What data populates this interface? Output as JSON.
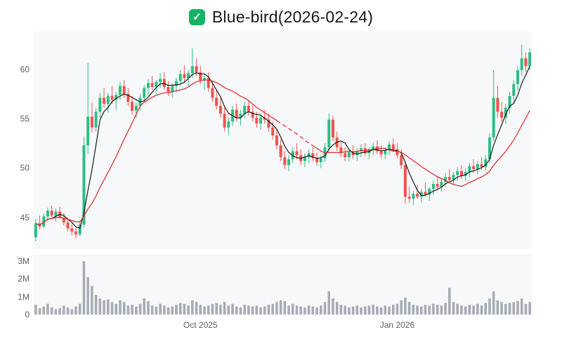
{
  "header": {
    "title": "Blue-bird(2026-02-24)",
    "checkbox_icon": {
      "color": "#16b364",
      "check": "✓"
    }
  },
  "chart_data": {
    "type": "candlestick",
    "title": "Blue-bird(2026-02-24)",
    "colors": {
      "up": "#2ebd85",
      "down": "#ef5350",
      "volume": "#a6abb3",
      "ma_fast": "#1a1a1a",
      "ma_slow": "#e03131",
      "panel_bg": "#f7f8fa"
    },
    "price_axis": {
      "range": [
        41.8,
        63.8
      ],
      "ticks": [
        {
          "value": 60,
          "label": "60"
        },
        {
          "value": 55,
          "label": "55"
        },
        {
          "value": 50,
          "label": "50"
        },
        {
          "value": 45,
          "label": "45"
        }
      ]
    },
    "volume_axis": {
      "max_millions": 3,
      "ticks": [
        {
          "value": 3,
          "label": "3M"
        },
        {
          "value": 2,
          "label": "2M"
        },
        {
          "value": 1,
          "label": "1M"
        },
        {
          "value": 0,
          "label": "0"
        }
      ]
    },
    "x_axis": {
      "tick_labels": [
        {
          "index": 41,
          "label": "Oct 2025"
        },
        {
          "index": 90,
          "label": "Jan 2026"
        }
      ]
    },
    "overlays": [
      {
        "name": "ma-fast",
        "type": "sma",
        "window": 5,
        "color_key": "ma_fast"
      },
      {
        "name": "ma-slow",
        "type": "sma",
        "window": 15,
        "color_key": "ma_slow",
        "dashed_segment": [
          60,
          69
        ]
      }
    ],
    "series": {
      "ohlcv_fields": [
        "open",
        "high",
        "low",
        "close",
        "volume_millions"
      ],
      "candles": [
        [
          43.0,
          44.9,
          42.6,
          44.4,
          0.55
        ],
        [
          44.4,
          45.2,
          43.8,
          44.1,
          0.35
        ],
        [
          44.1,
          45.4,
          43.9,
          45.1,
          0.45
        ],
        [
          45.1,
          46.0,
          44.7,
          45.7,
          0.6
        ],
        [
          45.7,
          46.2,
          45.0,
          45.2,
          0.4
        ],
        [
          45.2,
          45.9,
          44.6,
          45.6,
          0.3
        ],
        [
          45.6,
          46.1,
          44.9,
          45.0,
          0.35
        ],
        [
          45.0,
          45.5,
          44.2,
          44.5,
          0.5
        ],
        [
          44.5,
          45.0,
          43.6,
          43.9,
          0.4
        ],
        [
          43.9,
          44.4,
          43.2,
          43.6,
          0.3
        ],
        [
          43.6,
          44.1,
          42.9,
          43.3,
          0.45
        ],
        [
          43.3,
          44.6,
          43.1,
          44.3,
          0.6
        ],
        [
          44.3,
          53.2,
          44.0,
          52.3,
          3.0
        ],
        [
          52.3,
          60.6,
          51.4,
          55.2,
          2.1
        ],
        [
          55.2,
          56.6,
          53.6,
          54.1,
          1.6
        ],
        [
          54.1,
          56.1,
          53.7,
          55.7,
          1.1
        ],
        [
          55.7,
          57.6,
          55.1,
          57.1,
          0.9
        ],
        [
          57.1,
          58.1,
          56.1,
          56.5,
          0.8
        ],
        [
          56.5,
          57.6,
          55.6,
          57.3,
          0.85
        ],
        [
          57.3,
          58.3,
          56.5,
          56.9,
          0.7
        ],
        [
          56.9,
          57.7,
          55.9,
          57.4,
          0.6
        ],
        [
          57.4,
          58.7,
          56.9,
          58.3,
          0.8
        ],
        [
          58.3,
          58.9,
          57.1,
          57.5,
          0.7
        ],
        [
          57.5,
          58.1,
          56.3,
          56.7,
          0.5
        ],
        [
          56.7,
          57.3,
          55.4,
          55.8,
          0.55
        ],
        [
          55.8,
          56.7,
          55.1,
          56.3,
          0.45
        ],
        [
          56.3,
          57.5,
          55.9,
          57.1,
          0.6
        ],
        [
          57.1,
          58.4,
          56.7,
          58.1,
          0.9
        ],
        [
          58.1,
          59.0,
          57.3,
          58.6,
          0.75
        ],
        [
          58.6,
          59.3,
          57.9,
          58.2,
          0.5
        ],
        [
          58.2,
          58.9,
          57.5,
          58.7,
          0.45
        ],
        [
          58.7,
          59.6,
          58.1,
          59.0,
          0.6
        ],
        [
          59.0,
          59.7,
          57.9,
          58.2,
          0.5
        ],
        [
          58.2,
          58.8,
          57.3,
          57.7,
          0.4
        ],
        [
          57.7,
          58.5,
          57.1,
          58.3,
          0.45
        ],
        [
          58.3,
          59.1,
          57.7,
          58.8,
          0.55
        ],
        [
          58.8,
          59.9,
          58.3,
          59.5,
          0.65
        ],
        [
          59.5,
          60.4,
          58.7,
          59.1,
          0.6
        ],
        [
          59.1,
          59.9,
          58.3,
          59.6,
          0.5
        ],
        [
          59.6,
          62.1,
          59.1,
          60.3,
          0.8
        ],
        [
          60.3,
          61.1,
          59.3,
          59.7,
          0.7
        ],
        [
          59.7,
          60.3,
          58.5,
          58.9,
          0.55
        ],
        [
          58.9,
          59.5,
          57.9,
          59.1,
          0.45
        ],
        [
          59.1,
          59.7,
          57.7,
          58.1,
          0.5
        ],
        [
          58.1,
          58.7,
          56.7,
          57.1,
          0.6
        ],
        [
          57.1,
          57.9,
          55.9,
          56.3,
          0.65
        ],
        [
          56.3,
          57.1,
          55.1,
          55.5,
          0.55
        ],
        [
          55.5,
          56.1,
          53.7,
          54.1,
          0.7
        ],
        [
          54.1,
          55.1,
          53.3,
          54.7,
          0.5
        ],
        [
          54.7,
          56.3,
          54.3,
          55.9,
          0.6
        ],
        [
          55.9,
          56.5,
          54.7,
          55.1,
          0.45
        ],
        [
          55.1,
          55.9,
          54.3,
          55.5,
          0.4
        ],
        [
          55.5,
          56.7,
          55.1,
          56.3,
          0.55
        ],
        [
          56.3,
          56.9,
          55.3,
          55.7,
          0.5
        ],
        [
          55.7,
          56.3,
          54.7,
          55.1,
          0.45
        ],
        [
          55.1,
          55.7,
          54.1,
          54.5,
          0.5
        ],
        [
          54.5,
          55.5,
          53.9,
          55.1,
          0.4
        ],
        [
          55.1,
          55.9,
          54.5,
          54.9,
          0.45
        ],
        [
          54.9,
          55.5,
          53.7,
          54.1,
          0.55
        ],
        [
          54.1,
          54.7,
          52.9,
          53.3,
          0.6
        ],
        [
          53.3,
          53.9,
          51.9,
          52.3,
          0.7
        ],
        [
          52.3,
          52.9,
          50.7,
          51.1,
          0.8
        ],
        [
          51.1,
          51.7,
          49.9,
          50.3,
          0.75
        ],
        [
          50.3,
          51.3,
          49.7,
          50.9,
          0.5
        ],
        [
          50.9,
          52.1,
          50.5,
          51.7,
          0.6
        ],
        [
          51.7,
          52.5,
          50.9,
          51.3,
          0.5
        ],
        [
          51.3,
          51.9,
          50.3,
          50.7,
          0.45
        ],
        [
          50.7,
          51.5,
          50.1,
          51.1,
          0.4
        ],
        [
          51.1,
          51.9,
          50.5,
          51.5,
          0.5
        ],
        [
          51.5,
          52.1,
          50.7,
          51.0,
          0.45
        ],
        [
          51.0,
          51.6,
          50.2,
          50.6,
          0.4
        ],
        [
          50.6,
          51.3,
          50.0,
          51.0,
          0.5
        ],
        [
          51.0,
          52.5,
          50.6,
          52.1,
          0.7
        ],
        [
          52.1,
          55.5,
          51.7,
          54.9,
          1.3
        ],
        [
          54.9,
          55.3,
          52.7,
          53.1,
          0.9
        ],
        [
          53.1,
          53.7,
          51.7,
          52.1,
          0.7
        ],
        [
          52.1,
          52.7,
          51.1,
          51.5,
          0.55
        ],
        [
          51.5,
          52.1,
          50.7,
          51.1,
          0.5
        ],
        [
          51.1,
          51.9,
          50.7,
          51.6,
          0.4
        ],
        [
          51.6,
          52.3,
          50.9,
          51.3,
          0.45
        ],
        [
          51.3,
          52.0,
          50.7,
          51.7,
          0.5
        ],
        [
          51.7,
          52.4,
          51.1,
          52.0,
          0.4
        ],
        [
          52.0,
          52.5,
          51.2,
          51.5,
          0.45
        ],
        [
          51.5,
          52.1,
          50.9,
          51.9,
          0.5
        ],
        [
          51.9,
          52.6,
          51.3,
          52.2,
          0.55
        ],
        [
          52.2,
          52.8,
          51.4,
          51.7,
          0.45
        ],
        [
          51.7,
          52.3,
          51.0,
          51.4,
          0.4
        ],
        [
          51.4,
          52.1,
          50.9,
          51.8,
          0.5
        ],
        [
          51.8,
          52.7,
          51.3,
          52.4,
          0.45
        ],
        [
          52.4,
          53.0,
          51.6,
          51.9,
          0.55
        ],
        [
          51.9,
          52.5,
          51.0,
          51.3,
          0.6
        ],
        [
          51.3,
          51.9,
          49.9,
          50.3,
          0.8
        ],
        [
          50.3,
          50.7,
          46.4,
          47.1,
          0.95
        ],
        [
          47.1,
          48.1,
          46.5,
          46.9,
          0.7
        ],
        [
          46.9,
          47.7,
          46.3,
          47.4,
          0.55
        ],
        [
          47.4,
          48.3,
          46.9,
          47.1,
          0.5
        ],
        [
          47.1,
          47.9,
          46.5,
          47.6,
          0.45
        ],
        [
          47.6,
          48.5,
          47.1,
          47.3,
          0.55
        ],
        [
          47.3,
          48.1,
          46.7,
          47.9,
          0.5
        ],
        [
          47.9,
          48.7,
          47.3,
          48.4,
          0.6
        ],
        [
          48.4,
          49.1,
          47.7,
          48.1,
          0.55
        ],
        [
          48.1,
          48.9,
          47.6,
          48.6,
          0.5
        ],
        [
          48.6,
          49.5,
          48.1,
          49.1,
          0.65
        ],
        [
          49.1,
          49.9,
          48.5,
          48.8,
          1.5
        ],
        [
          48.8,
          49.6,
          48.3,
          49.3,
          0.7
        ],
        [
          49.3,
          50.1,
          48.7,
          49.7,
          0.6
        ],
        [
          49.7,
          50.3,
          48.9,
          49.2,
          0.5
        ],
        [
          49.2,
          50.0,
          48.7,
          49.6,
          0.45
        ],
        [
          49.6,
          50.5,
          49.1,
          50.2,
          0.55
        ],
        [
          50.2,
          50.9,
          49.5,
          49.9,
          0.5
        ],
        [
          49.9,
          50.7,
          49.4,
          50.4,
          0.6
        ],
        [
          50.4,
          51.1,
          49.8,
          50.1,
          0.5
        ],
        [
          50.1,
          51.3,
          49.7,
          50.9,
          0.65
        ],
        [
          50.9,
          53.5,
          50.5,
          53.1,
          0.9
        ],
        [
          53.1,
          59.9,
          52.7,
          57.1,
          1.3
        ],
        [
          57.1,
          58.3,
          55.1,
          55.7,
          0.8
        ],
        [
          55.7,
          56.7,
          54.7,
          55.1,
          0.7
        ],
        [
          55.1,
          56.5,
          54.5,
          56.1,
          0.6
        ],
        [
          56.1,
          57.7,
          55.5,
          57.3,
          0.65
        ],
        [
          57.3,
          58.9,
          56.7,
          58.5,
          0.7
        ],
        [
          58.5,
          60.3,
          57.9,
          59.9,
          0.75
        ],
        [
          59.9,
          62.5,
          59.3,
          61.1,
          0.9
        ],
        [
          61.1,
          61.7,
          59.7,
          60.3,
          0.6
        ],
        [
          60.3,
          62.1,
          59.9,
          61.7,
          0.7
        ]
      ]
    }
  }
}
